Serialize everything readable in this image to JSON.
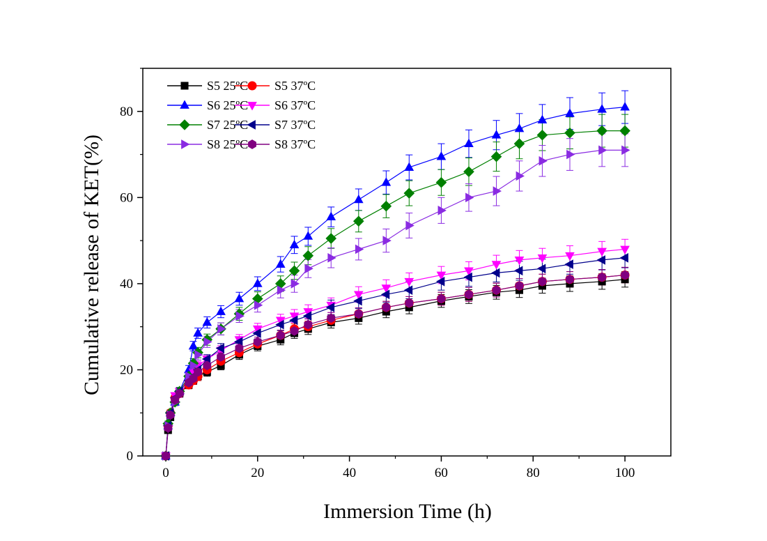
{
  "chart_data": {
    "type": "line",
    "title": "",
    "xlabel": "Immersion Time (h)",
    "ylabel": "Cumulative release of KET(%)",
    "xlim": [
      -5,
      110
    ],
    "ylim": [
      0,
      90
    ],
    "xticks": [
      0,
      20,
      40,
      60,
      80,
      100
    ],
    "yticks": [
      0,
      20,
      40,
      60,
      80
    ],
    "grid": false,
    "legend_position": "top-left",
    "x": [
      0,
      0.5,
      1,
      2,
      3,
      5,
      6,
      7,
      9,
      12,
      16,
      20,
      25,
      28,
      31,
      36,
      42,
      48,
      53,
      60,
      66,
      72,
      77,
      82,
      88,
      95,
      100
    ],
    "series": [
      {
        "name": "S5 25ºC",
        "color": "#000000",
        "marker": "square",
        "values": [
          0,
          6,
          9,
          13,
          14.5,
          16.5,
          17.5,
          18.5,
          19.5,
          21,
          23.5,
          25.5,
          27,
          28.5,
          29.5,
          31,
          32,
          33.5,
          34.5,
          36,
          37,
          38,
          38.5,
          39.5,
          40,
          40.5,
          41
        ],
        "errors": [
          0,
          0.5,
          0.6,
          0.7,
          0.8,
          0.9,
          0.9,
          1,
          1,
          1,
          1.1,
          1.1,
          1.2,
          1.2,
          1.3,
          1.3,
          1.4,
          1.4,
          1.5,
          1.5,
          1.6,
          1.6,
          1.7,
          1.7,
          1.8,
          1.8,
          1.8
        ]
      },
      {
        "name": "S5 37ºC",
        "color": "#ff0000",
        "marker": "circle",
        "values": [
          0,
          7,
          10,
          13.5,
          14.5,
          16.5,
          17.5,
          18.5,
          20,
          22,
          24,
          26,
          28,
          29.5,
          30,
          31.5,
          33,
          34.5,
          35.5,
          36.5,
          37.5,
          38.5,
          39.5,
          40.5,
          41,
          41.5,
          42
        ],
        "errors": [
          0,
          0.5,
          0.6,
          0.7,
          0.8,
          0.9,
          0.9,
          1,
          1,
          1,
          1.1,
          1.1,
          1.2,
          1.2,
          1.3,
          1.3,
          1.4,
          1.4,
          1.5,
          1.5,
          1.6,
          1.6,
          1.7,
          1.7,
          1.8,
          1.8,
          1.8
        ]
      },
      {
        "name": "S6 25ºC",
        "color": "#0000ff",
        "marker": "triangle-up",
        "values": [
          0,
          7,
          10,
          12.5,
          15,
          20,
          25.5,
          28.5,
          31,
          33.5,
          36.5,
          40,
          44.5,
          49,
          51,
          55.5,
          59.5,
          63.5,
          67,
          69.5,
          72.5,
          74.5,
          76,
          78,
          79.5,
          80.5,
          81
        ],
        "errors": [
          0,
          0.6,
          0.7,
          0.8,
          0.9,
          1,
          1.1,
          1.2,
          1.3,
          1.4,
          1.5,
          1.6,
          1.8,
          2,
          2.1,
          2.3,
          2.5,
          2.7,
          2.9,
          3,
          3.2,
          3.4,
          3.5,
          3.6,
          3.7,
          3.8,
          3.8
        ]
      },
      {
        "name": "S6 37ºC",
        "color": "#ff00ff",
        "marker": "triangle-down",
        "values": [
          0,
          6.5,
          9.5,
          14,
          15,
          18,
          19.5,
          21,
          22.5,
          24.5,
          27,
          29.5,
          31.5,
          32.5,
          33.5,
          35,
          37.5,
          39,
          40.5,
          42,
          43,
          44.5,
          45.5,
          46,
          46.5,
          47.5,
          48
        ],
        "errors": [
          0,
          0.5,
          0.6,
          0.7,
          0.8,
          0.9,
          0.9,
          1,
          1,
          1.1,
          1.2,
          1.3,
          1.4,
          1.5,
          1.6,
          1.7,
          1.8,
          1.9,
          2,
          2,
          2.1,
          2.1,
          2.2,
          2.2,
          2.3,
          2.3,
          2.3
        ]
      },
      {
        "name": "S7 25ºC",
        "color": "#008000",
        "marker": "diamond",
        "values": [
          0,
          7.5,
          10,
          12.5,
          15,
          18.5,
          21.5,
          24,
          27,
          29.5,
          33,
          36.5,
          40,
          43,
          46.5,
          50.5,
          54.5,
          58,
          61,
          63.5,
          66,
          69.5,
          72.5,
          74.5,
          75,
          75.5,
          75.5
        ],
        "errors": [
          0,
          0.6,
          0.7,
          0.8,
          0.9,
          1,
          1.1,
          1.2,
          1.3,
          1.4,
          1.5,
          1.6,
          1.8,
          2,
          2.1,
          2.3,
          2.5,
          2.7,
          2.9,
          3,
          3.2,
          3.4,
          3.5,
          3.6,
          3.7,
          3.8,
          3.8
        ]
      },
      {
        "name": "S7 37ºC",
        "color": "#00008b",
        "marker": "triangle-left",
        "values": [
          0,
          7,
          10,
          13.5,
          15,
          17.5,
          18.5,
          20,
          22.5,
          25,
          26.5,
          28.5,
          30.5,
          31.5,
          32.5,
          34.5,
          36,
          37.5,
          38.5,
          40.5,
          41.5,
          42.5,
          43,
          43.5,
          44.5,
          45.5,
          46
        ],
        "errors": [
          0,
          0.5,
          0.6,
          0.7,
          0.8,
          0.9,
          0.9,
          1,
          1,
          1.1,
          1.2,
          1.3,
          1.4,
          1.5,
          1.6,
          1.7,
          1.8,
          1.9,
          2,
          2,
          2.1,
          2.1,
          2.2,
          2.2,
          2.3,
          2.3,
          2.3
        ]
      },
      {
        "name": "S8 25ºC",
        "color": "#8a2be2",
        "marker": "triangle-right",
        "values": [
          0,
          7,
          9.5,
          12.5,
          14.5,
          18.5,
          21,
          23.5,
          26.5,
          29.5,
          32.5,
          35,
          38.5,
          40,
          43.5,
          46,
          48,
          50,
          53.5,
          57,
          60,
          61.5,
          65,
          68.5,
          70,
          71,
          71
        ],
        "errors": [
          0,
          0.6,
          0.7,
          0.8,
          0.9,
          1,
          1.1,
          1.2,
          1.3,
          1.4,
          1.5,
          1.6,
          1.8,
          2,
          2.1,
          2.3,
          2.5,
          2.7,
          2.9,
          3,
          3.2,
          3.4,
          3.5,
          3.6,
          3.7,
          3.8,
          3.8
        ]
      },
      {
        "name": "S8 37ºC",
        "color": "#800080",
        "marker": "hexagon",
        "values": [
          0,
          6.5,
          9.5,
          13,
          14.5,
          17,
          18,
          19.5,
          21,
          23,
          25,
          26.5,
          28,
          29,
          30.5,
          32,
          33,
          34.5,
          35.5,
          36.5,
          37.5,
          38.5,
          39.5,
          40.5,
          41,
          41.5,
          42
        ],
        "errors": [
          0,
          0.5,
          0.6,
          0.7,
          0.8,
          0.9,
          0.9,
          1,
          1,
          1,
          1.1,
          1.1,
          1.2,
          1.2,
          1.3,
          1.3,
          1.4,
          1.4,
          1.5,
          1.5,
          1.6,
          1.6,
          1.7,
          1.7,
          1.8,
          1.8,
          1.8
        ]
      }
    ]
  }
}
